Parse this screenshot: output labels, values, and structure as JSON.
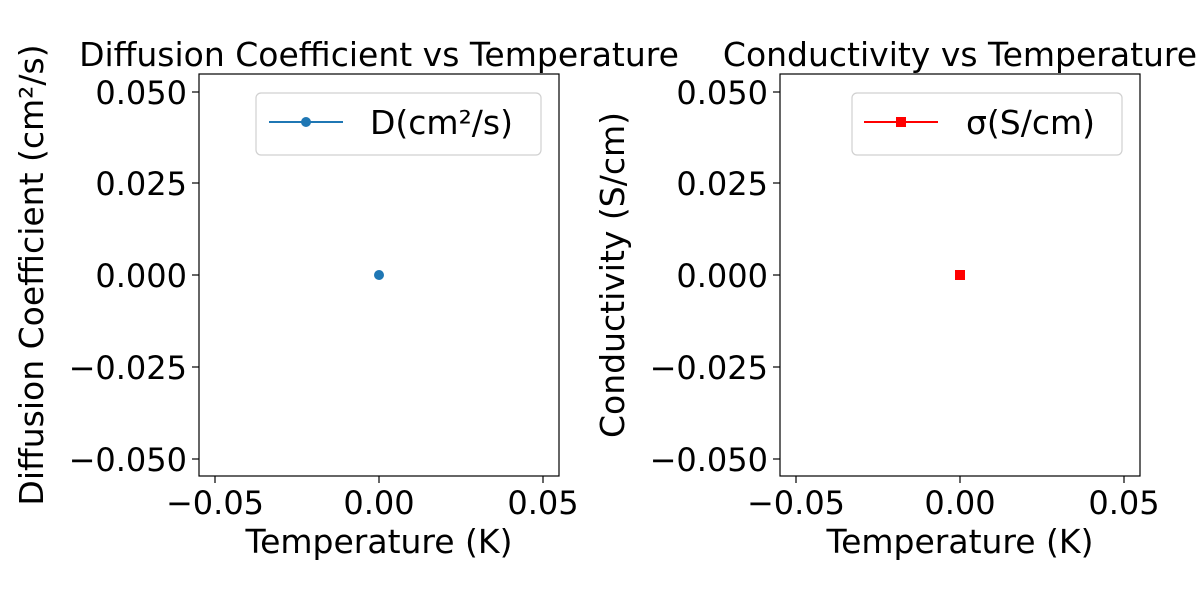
{
  "chart_data": [
    {
      "type": "line",
      "title": "Diffusion Coefficient vs Temperature",
      "xlabel": "Temperature (K)",
      "ylabel": "Diffusion Coefficient (cm²/s)",
      "xlim": [
        -0.055,
        0.055
      ],
      "ylim": [
        -0.055,
        0.055
      ],
      "xticks": [
        -0.05,
        0.0,
        0.05
      ],
      "xtick_labels": [
        "−0.05",
        "0.00",
        "0.05"
      ],
      "yticks": [
        -0.05,
        -0.025,
        0.0,
        0.025,
        0.05
      ],
      "ytick_labels": [
        "−0.050",
        "−0.025",
        "0.000",
        "0.025",
        "0.050"
      ],
      "grid": false,
      "legend": "upper-right",
      "series": [
        {
          "name": "D(cm²/s)",
          "color": "#1f77b4",
          "marker": "circle",
          "x": [
            0.0
          ],
          "y": [
            0.0
          ]
        }
      ]
    },
    {
      "type": "line",
      "title": "Conductivity vs Temperature",
      "xlabel": "Temperature (K)",
      "ylabel": "Conductivity (S/cm)",
      "xlim": [
        -0.055,
        0.055
      ],
      "ylim": [
        -0.055,
        0.055
      ],
      "xticks": [
        -0.05,
        0.0,
        0.05
      ],
      "xtick_labels": [
        "−0.05",
        "0.00",
        "0.05"
      ],
      "yticks": [
        -0.05,
        -0.025,
        0.0,
        0.025,
        0.05
      ],
      "ytick_labels": [
        "−0.050",
        "−0.025",
        "0.000",
        "0.025",
        "0.050"
      ],
      "grid": false,
      "legend": "upper-right",
      "series": [
        {
          "name": "σ(S/cm)",
          "color": "#ff0000",
          "marker": "square",
          "x": [
            0.0
          ],
          "y": [
            0.0
          ]
        }
      ]
    }
  ]
}
